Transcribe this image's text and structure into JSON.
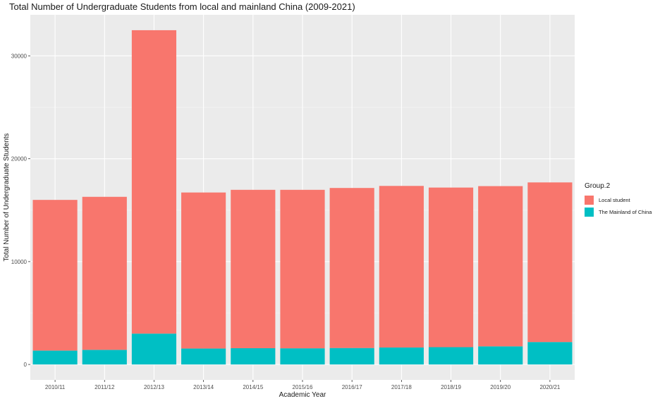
{
  "chart_data": {
    "type": "bar",
    "stacked": true,
    "title": "Total Number of Undergraduate Students from local and mainland China (2009-2021)",
    "xlabel": "Academic Year",
    "ylabel": "Total Number of Undergraduate Students",
    "categories": [
      "2010/11",
      "2011/12",
      "2012/13",
      "2013/14",
      "2014/15",
      "2015/16",
      "2016/17",
      "2017/18",
      "2018/19",
      "2019/20",
      "2020/21"
    ],
    "series": [
      {
        "name": "The Mainland of China",
        "color": "#00BFC4",
        "values": [
          1350,
          1420,
          3000,
          1550,
          1580,
          1570,
          1600,
          1650,
          1680,
          1760,
          2180
        ]
      },
      {
        "name": "Local student",
        "color": "#F8766D",
        "values": [
          14650,
          14880,
          29500,
          15170,
          15400,
          15410,
          15560,
          15710,
          15520,
          15580,
          15520
        ]
      }
    ],
    "ylim": [
      -1500,
      34000
    ],
    "yticks": [
      0,
      10000,
      20000,
      30000
    ],
    "grid": true,
    "legend": {
      "title": "Group.2",
      "position": "right",
      "order": [
        "Local student",
        "The Mainland of China"
      ]
    },
    "panel_background": "#EBEBEB"
  }
}
